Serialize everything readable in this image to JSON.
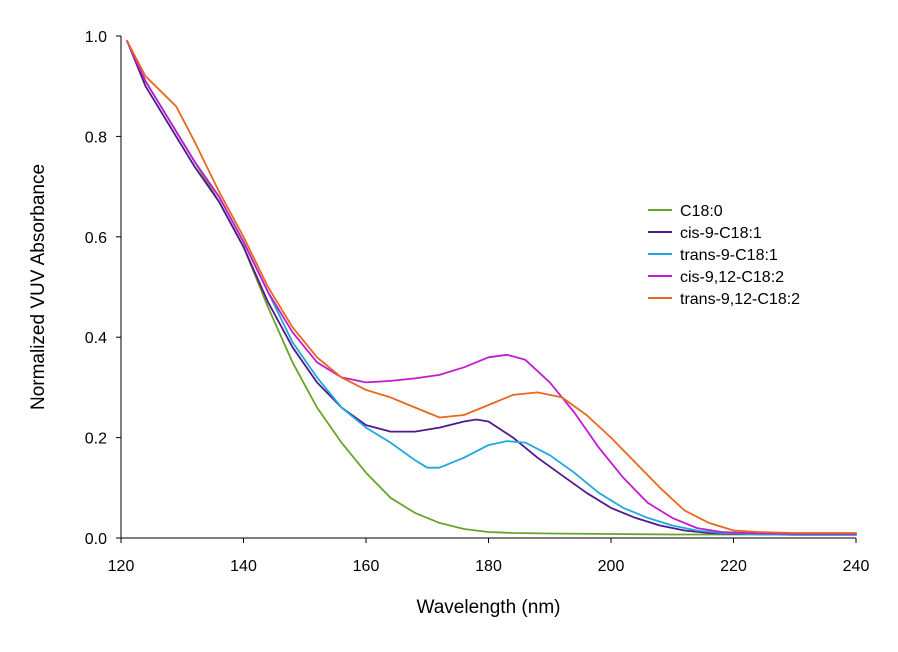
{
  "chart_data": {
    "type": "line",
    "xlabel": "Wavelength (nm)",
    "ylabel": "Normalized VUV Absorbance",
    "xlim": [
      120,
      240
    ],
    "ylim": [
      0,
      1.0
    ],
    "x_ticks": [
      120,
      140,
      160,
      180,
      200,
      220,
      240
    ],
    "x_tick_labels": [
      "120",
      "140",
      "160",
      "180",
      "200",
      "220",
      "240"
    ],
    "y_ticks": [
      0,
      0.2,
      0.4,
      0.6,
      0.8,
      1.0
    ],
    "y_tick_labels": [
      "0.0",
      "0.2",
      "0.4",
      "0.6",
      "0.8",
      "1.0"
    ],
    "grid": false,
    "legend_position": "right",
    "series": [
      {
        "name": "C18:0",
        "color": "#6aa329",
        "x": [
          121,
          124,
          128,
          132,
          136,
          140,
          144,
          148,
          152,
          156,
          160,
          164,
          168,
          172,
          176,
          180,
          184,
          190,
          200,
          210,
          220,
          230,
          240
        ],
        "y": [
          0.99,
          0.91,
          0.83,
          0.75,
          0.67,
          0.58,
          0.46,
          0.35,
          0.26,
          0.19,
          0.13,
          0.08,
          0.05,
          0.03,
          0.018,
          0.012,
          0.01,
          0.009,
          0.008,
          0.007,
          0.007,
          0.007,
          0.007
        ]
      },
      {
        "name": "cis-9-C18:1",
        "color": "#4f1a8a",
        "x": [
          121,
          124,
          128,
          132,
          136,
          140,
          144,
          148,
          152,
          156,
          160,
          164,
          168,
          172,
          176,
          178,
          180,
          184,
          188,
          192,
          196,
          200,
          204,
          208,
          212,
          216,
          220,
          230,
          240
        ],
        "y": [
          0.99,
          0.9,
          0.82,
          0.74,
          0.67,
          0.58,
          0.47,
          0.38,
          0.31,
          0.26,
          0.225,
          0.212,
          0.212,
          0.22,
          0.232,
          0.236,
          0.232,
          0.2,
          0.16,
          0.125,
          0.09,
          0.06,
          0.04,
          0.025,
          0.015,
          0.01,
          0.008,
          0.007,
          0.007
        ]
      },
      {
        "name": "trans-9-C18:1",
        "color": "#1fa8e0",
        "x": [
          121,
          124,
          128,
          132,
          136,
          140,
          144,
          148,
          152,
          156,
          160,
          164,
          168,
          170,
          172,
          176,
          180,
          183,
          186,
          190,
          194,
          198,
          202,
          206,
          210,
          214,
          218,
          222,
          230,
          240
        ],
        "y": [
          0.99,
          0.91,
          0.83,
          0.75,
          0.68,
          0.59,
          0.49,
          0.39,
          0.32,
          0.26,
          0.22,
          0.19,
          0.155,
          0.14,
          0.14,
          0.16,
          0.185,
          0.193,
          0.19,
          0.165,
          0.13,
          0.09,
          0.06,
          0.04,
          0.025,
          0.015,
          0.01,
          0.008,
          0.006,
          0.006
        ]
      },
      {
        "name": "cis-9,12-C18:2",
        "color": "#c41bd0",
        "x": [
          121,
          124,
          128,
          132,
          136,
          140,
          144,
          148,
          152,
          156,
          160,
          164,
          168,
          172,
          176,
          180,
          183,
          186,
          190,
          194,
          198,
          202,
          206,
          210,
          214,
          218,
          222,
          230,
          240
        ],
        "y": [
          0.99,
          0.91,
          0.83,
          0.75,
          0.68,
          0.59,
          0.49,
          0.41,
          0.35,
          0.32,
          0.31,
          0.313,
          0.318,
          0.325,
          0.34,
          0.36,
          0.365,
          0.355,
          0.31,
          0.25,
          0.18,
          0.12,
          0.07,
          0.04,
          0.02,
          0.012,
          0.01,
          0.008,
          0.008
        ]
      },
      {
        "name": "trans-9,12-C18:2",
        "color": "#e8681f",
        "x": [
          121,
          124,
          129,
          132,
          136,
          140,
          144,
          148,
          152,
          156,
          160,
          164,
          168,
          172,
          176,
          180,
          184,
          188,
          192,
          196,
          200,
          204,
          208,
          212,
          216,
          220,
          224,
          230,
          240
        ],
        "y": [
          0.99,
          0.92,
          0.86,
          0.79,
          0.69,
          0.6,
          0.5,
          0.42,
          0.36,
          0.32,
          0.295,
          0.28,
          0.26,
          0.24,
          0.245,
          0.265,
          0.285,
          0.29,
          0.28,
          0.245,
          0.2,
          0.15,
          0.1,
          0.055,
          0.03,
          0.015,
          0.012,
          0.01,
          0.01
        ]
      }
    ]
  }
}
